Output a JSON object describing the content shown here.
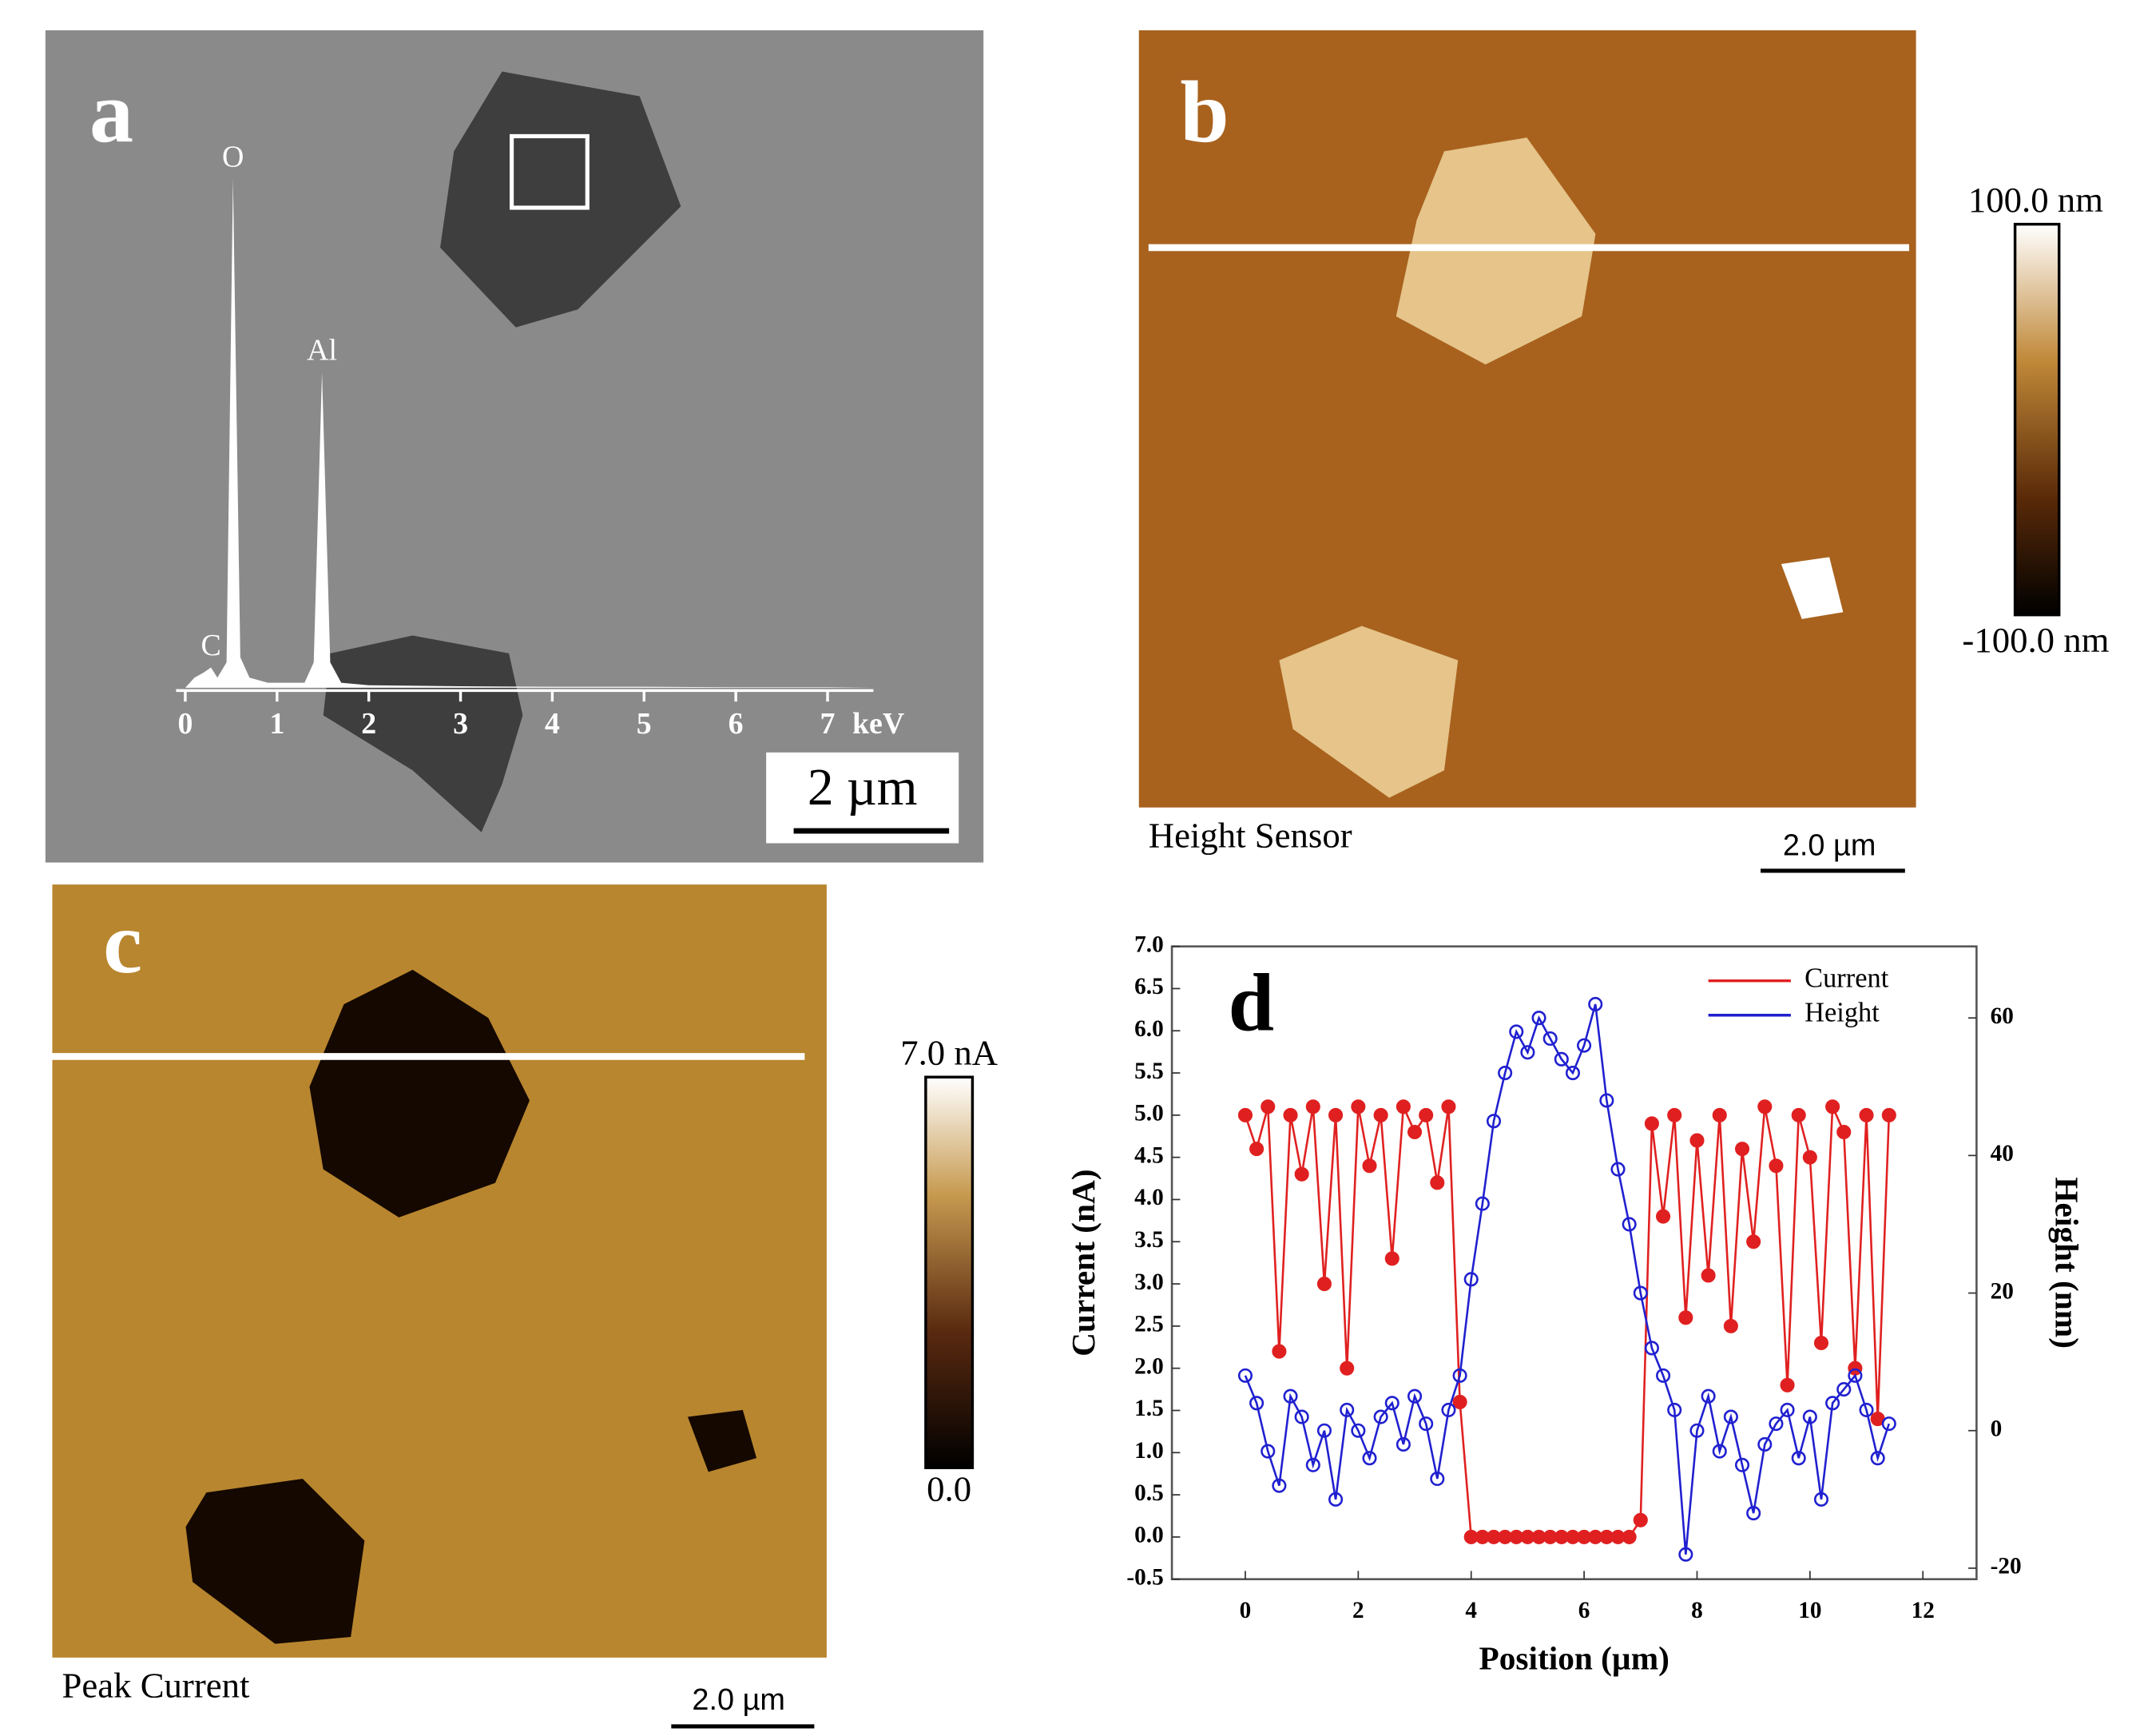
{
  "panels": {
    "a": {
      "label": "a",
      "scale_bar": "2 µm"
    },
    "b": {
      "label": "b",
      "caption": "Height Sensor",
      "scale_bar": "2.0 µm",
      "colorbar_max": "100.0 nm",
      "colorbar_min": "-100.0 nm"
    },
    "c": {
      "label": "c",
      "caption": "Peak Current",
      "scale_bar": "2.0 µm",
      "colorbar_max": "7.0 nA",
      "colorbar_min": "0.0"
    },
    "d": {
      "label": "d"
    }
  },
  "chart_data": [
    {
      "type": "area",
      "x_label": "keV",
      "x": [
        0,
        0.1,
        0.2,
        0.28,
        0.35,
        0.45,
        0.52,
        0.6,
        0.7,
        0.9,
        1.1,
        1.3,
        1.4,
        1.49,
        1.58,
        1.7,
        2.0,
        3,
        4,
        5,
        6,
        7,
        7.5
      ],
      "values": [
        0,
        2,
        3,
        4,
        2,
        5,
        100,
        6,
        2,
        1,
        1,
        1,
        5,
        62,
        5,
        1,
        0.5,
        0.3,
        0.2,
        0.2,
        0.1,
        0.1,
        0
      ],
      "color": "#ffffff",
      "annotations": [
        {
          "text": "C",
          "x": 0.28
        },
        {
          "text": "O",
          "x": 0.52
        },
        {
          "text": "Al",
          "x": 1.49
        }
      ],
      "xlim": [
        -0.1,
        7.5
      ],
      "xticks": [
        0,
        1,
        2,
        3,
        4,
        5,
        6,
        7
      ]
    },
    {
      "type": "line",
      "x_label": "Position (µm)",
      "y_label": "Current (nA)",
      "y2_label": "Height (nm)",
      "legend": "top-right",
      "x": [
        0,
        0.2,
        0.4,
        0.6,
        0.8,
        1.0,
        1.2,
        1.4,
        1.6,
        1.8,
        2.0,
        2.2,
        2.4,
        2.6,
        2.8,
        3.0,
        3.2,
        3.4,
        3.6,
        3.8,
        4.0,
        4.2,
        4.4,
        4.6,
        4.8,
        5.0,
        5.2,
        5.4,
        5.6,
        5.8,
        6.0,
        6.2,
        6.4,
        6.6,
        6.8,
        7.0,
        7.2,
        7.4,
        7.6,
        7.8,
        8.0,
        8.2,
        8.4,
        8.6,
        8.8,
        9.0,
        9.2,
        9.4,
        9.6,
        9.8,
        10.0,
        10.2,
        10.4,
        10.6,
        10.8,
        11.0,
        11.2,
        11.4
      ],
      "series": [
        {
          "name": "Current",
          "color": "#e02020",
          "marker": "filled",
          "values": [
            5.0,
            4.6,
            5.1,
            2.2,
            5.0,
            4.3,
            5.1,
            3.0,
            5.0,
            2.0,
            5.1,
            4.4,
            5.0,
            3.3,
            5.1,
            4.8,
            5.0,
            4.2,
            5.1,
            1.6,
            0,
            0,
            0,
            0,
            0,
            0,
            0,
            0,
            0,
            0,
            0,
            0,
            0,
            0,
            0,
            0.2,
            4.9,
            3.8,
            5.0,
            2.6,
            4.7,
            3.1,
            5.0,
            2.5,
            4.6,
            3.5,
            5.1,
            4.4,
            1.8,
            5.0,
            4.5,
            2.3,
            5.1,
            4.8,
            2.0,
            5.0,
            1.4,
            5.0
          ]
        },
        {
          "name": "Height",
          "color": "#2020d0",
          "marker": "open",
          "axis": "y2",
          "values": [
            8,
            4,
            -3,
            -8,
            5,
            2,
            -5,
            0,
            -10,
            3,
            0,
            -4,
            2,
            4,
            -2,
            5,
            1,
            -7,
            3,
            8,
            22,
            33,
            45,
            52,
            58,
            55,
            60,
            57,
            54,
            52,
            56,
            62,
            48,
            38,
            30,
            20,
            12,
            8,
            3,
            -18,
            0,
            5,
            -3,
            2,
            -5,
            -12,
            -2,
            1,
            3,
            -4,
            2,
            -10,
            4,
            6,
            8,
            3,
            -4,
            1
          ]
        }
      ],
      "xlim": [
        -1.3,
        12.95
      ],
      "xticks": [
        0,
        2,
        4,
        6,
        8,
        10,
        12
      ],
      "ylim": [
        -0.5,
        7.0
      ],
      "yticks": [
        -0.5,
        {
          "value": 0,
          "label": "0.0"
        },
        0.5,
        {
          "value": 1,
          "label": "1.0"
        },
        1.5,
        {
          "value": 2,
          "label": "2.0"
        },
        2.5,
        {
          "value": 3,
          "label": "3.0"
        },
        3.5,
        {
          "value": 4,
          "label": "4.0"
        },
        4.5,
        {
          "value": 5,
          "label": "5.0"
        },
        5.5,
        {
          "value": 6,
          "label": "6.0"
        },
        6.5,
        {
          "value": 7,
          "label": "7.0"
        }
      ],
      "y2lim": [
        -21.6,
        70.4
      ],
      "y2ticks": [
        -20,
        0,
        20,
        40,
        60
      ]
    }
  ]
}
